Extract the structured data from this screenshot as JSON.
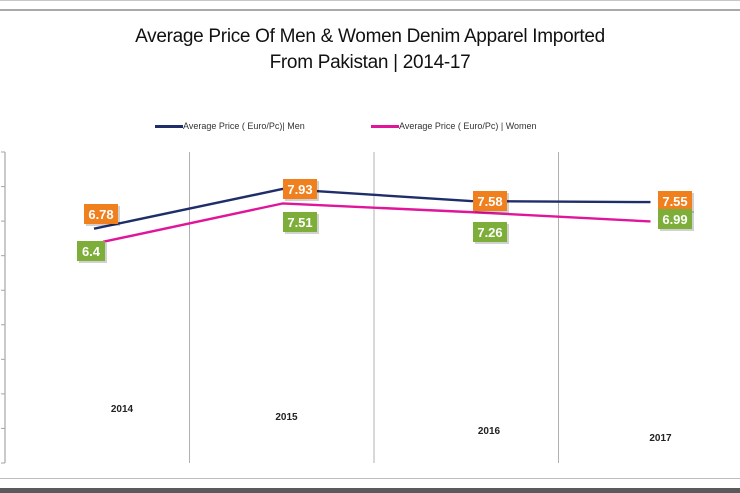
{
  "chart_data": {
    "type": "line",
    "title_line1": "Average Price Of  Men & Women Denim Apparel Imported",
    "title_line2": "From Pakistan | 2014-17",
    "categories": [
      "2014",
      "2015",
      "2016",
      "2017"
    ],
    "series": [
      {
        "name": "Average Price ( Euro/Pc)| Men",
        "values": [
          6.78,
          7.93,
          7.58,
          7.55
        ],
        "line_color": "#1f2d6b",
        "label_color": "#f07f1e"
      },
      {
        "name": "Average Price ( Euro/Pc) | Women",
        "values": [
          6.4,
          7.51,
          7.26,
          6.99
        ],
        "line_color": "#e0169a",
        "label_color": "#7eae3a"
      }
    ],
    "ylim": [
      0,
      9
    ],
    "y_ticks": [
      0,
      1,
      2,
      3,
      4,
      5,
      6,
      7,
      8,
      9
    ],
    "ytick_labels_visible": false,
    "xlabel": "",
    "ylabel": "",
    "grid": "vertical",
    "legend_position": "top"
  }
}
